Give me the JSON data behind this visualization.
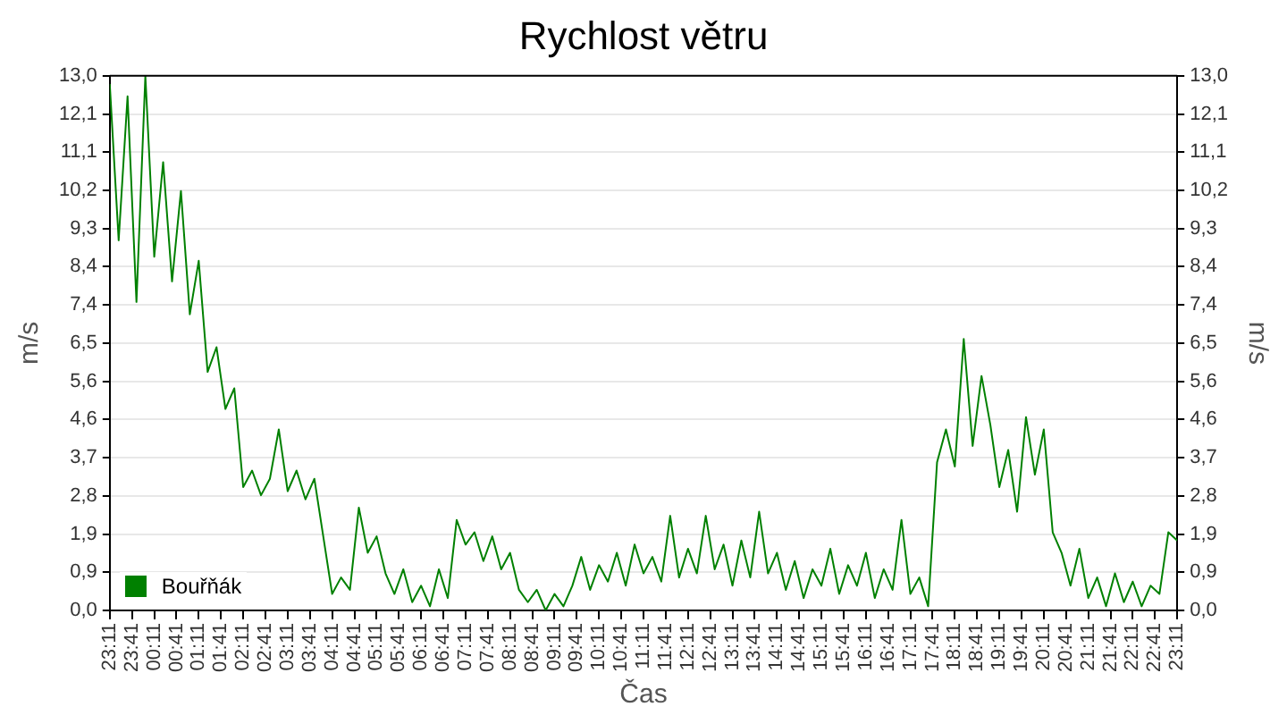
{
  "chart_data": {
    "type": "line",
    "title": "Rychlost větru",
    "xlabel": "Čas",
    "ylabel": "m/s",
    "y2label": "m/s",
    "x": [
      "--01-01T23:11",
      "--01-01T23:23",
      "--01-01T23:35",
      "--01-01T23:47",
      "--01-01T23:59",
      "--01-02T00:11",
      "--01-02T00:23",
      "--01-02T00:35",
      "--01-02T00:47",
      "--01-02T00:59",
      "--01-02T01:11",
      "--01-02T01:23",
      "--01-02T01:35",
      "--01-02T01:47",
      "--01-02T01:59",
      "--01-02T02:11",
      "--01-02T02:23",
      "--01-02T02:35",
      "--01-02T02:47",
      "--01-02T02:59",
      "--01-02T03:11",
      "--01-02T03:23",
      "--01-02T03:35",
      "--01-02T03:47",
      "--01-02T03:59",
      "--01-02T04:11",
      "--01-02T04:23",
      "--01-02T04:35",
      "--01-02T04:47",
      "--01-02T04:59",
      "--01-02T05:11",
      "--01-02T05:23",
      "--01-02T05:35",
      "--01-02T05:47",
      "--01-02T05:59",
      "--01-02T06:11",
      "--01-02T06:23",
      "--01-02T06:35",
      "--01-02T06:47",
      "--01-02T06:59",
      "--01-02T07:11",
      "--01-02T07:23",
      "--01-02T07:35",
      "--01-02T07:47",
      "--01-02T07:59",
      "--01-02T08:11",
      "--01-02T08:23",
      "--01-02T08:35",
      "--01-02T08:47",
      "--01-02T08:59",
      "--01-02T09:11",
      "--01-02T09:23",
      "--01-02T09:35",
      "--01-02T09:47",
      "--01-02T09:59",
      "--01-02T10:11",
      "--01-02T10:23",
      "--01-02T10:35",
      "--01-02T10:47",
      "--01-02T10:59",
      "--01-02T11:11",
      "--01-02T11:23",
      "--01-02T11:35",
      "--01-02T11:47",
      "--01-02T11:59",
      "--01-02T12:11",
      "--01-02T12:23",
      "--01-02T12:35",
      "--01-02T12:47",
      "--01-02T12:59",
      "--01-02T13:11",
      "--01-02T13:23",
      "--01-02T13:35",
      "--01-02T13:47",
      "--01-02T13:59",
      "--01-02T14:11",
      "--01-02T14:23",
      "--01-02T14:35",
      "--01-02T14:47",
      "--01-02T14:59",
      "--01-02T15:11",
      "--01-02T15:23",
      "--01-02T15:35",
      "--01-02T15:47",
      "--01-02T15:59",
      "--01-02T16:11",
      "--01-02T16:23",
      "--01-02T16:35",
      "--01-02T16:47",
      "--01-02T16:59",
      "--01-02T17:11",
      "--01-02T17:23",
      "--01-02T17:35",
      "--01-02T17:47",
      "--01-02T17:59",
      "--01-02T18:11",
      "--01-02T18:23",
      "--01-02T18:35",
      "--01-02T18:47",
      "--01-02T18:59",
      "--01-02T19:11",
      "--01-02T19:23",
      "--01-02T19:35",
      "--01-02T19:47",
      "--01-02T19:59",
      "--01-02T20:11",
      "--01-02T20:23",
      "--01-02T20:35",
      "--01-02T20:47",
      "--01-02T20:59",
      "--01-02T21:11",
      "--01-02T21:23",
      "--01-02T21:35",
      "--01-02T21:47",
      "--01-02T21:59",
      "--01-02T22:11",
      "--01-02T22:23",
      "--01-02T22:35",
      "--01-02T22:47",
      "--01-02T22:59",
      "--01-02T23:11"
    ],
    "series": [
      {
        "name": "Bouřňák",
        "color": "#008000",
        "values": [
          12.8,
          9.0,
          12.5,
          7.5,
          13.0,
          8.6,
          10.9,
          8.0,
          10.2,
          7.2,
          8.5,
          5.8,
          6.4,
          4.9,
          5.4,
          3.0,
          3.4,
          2.8,
          3.2,
          4.4,
          2.9,
          3.4,
          2.7,
          3.2,
          1.8,
          0.4,
          0.8,
          0.5,
          2.5,
          1.4,
          1.8,
          0.9,
          0.4,
          1.0,
          0.2,
          0.6,
          0.1,
          1.0,
          0.3,
          2.2,
          1.6,
          1.9,
          1.2,
          1.8,
          1.0,
          1.4,
          0.5,
          0.2,
          0.5,
          0.0,
          0.4,
          0.1,
          0.6,
          1.3,
          0.5,
          1.1,
          0.7,
          1.4,
          0.6,
          1.6,
          0.9,
          1.3,
          0.7,
          2.3,
          0.8,
          1.5,
          0.9,
          2.3,
          1.0,
          1.6,
          0.6,
          1.7,
          0.8,
          2.4,
          0.9,
          1.4,
          0.5,
          1.2,
          0.3,
          1.0,
          0.6,
          1.5,
          0.4,
          1.1,
          0.6,
          1.4,
          0.3,
          1.0,
          0.5,
          2.2,
          0.4,
          0.8,
          0.1,
          3.6,
          4.4,
          3.5,
          6.6,
          4.0,
          5.7,
          4.5,
          3.0,
          3.9,
          2.4,
          4.7,
          3.3,
          4.4,
          1.9,
          1.4,
          0.6,
          1.5,
          0.3,
          0.8,
          0.1,
          0.9,
          0.2,
          0.7,
          0.1,
          0.6,
          0.4,
          1.9,
          1.7
        ]
      }
    ],
    "xlim": [
      "--01-01T23:11",
      "--01-02T23:11"
    ],
    "xticks": [
      {
        "value": "--01-01T23:11",
        "label": "23:11"
      },
      {
        "value": "--01-01T23:41",
        "label": "23:41"
      },
      {
        "value": "--01-02T00:11",
        "label": "00:11"
      },
      {
        "value": "--01-02T00:41",
        "label": "00:41"
      },
      {
        "value": "--01-02T01:11",
        "label": "01:11"
      },
      {
        "value": "--01-02T01:41",
        "label": "01:41"
      },
      {
        "value": "--01-02T02:11",
        "label": "02:11"
      },
      {
        "value": "--01-02T02:41",
        "label": "02:41"
      },
      {
        "value": "--01-02T03:11",
        "label": "03:11"
      },
      {
        "value": "--01-02T03:41",
        "label": "03:41"
      },
      {
        "value": "--01-02T04:11",
        "label": "04:11"
      },
      {
        "value": "--01-02T04:41",
        "label": "04:41"
      },
      {
        "value": "--01-02T05:11",
        "label": "05:11"
      },
      {
        "value": "--01-02T05:41",
        "label": "05:41"
      },
      {
        "value": "--01-02T06:11",
        "label": "06:11"
      },
      {
        "value": "--01-02T06:41",
        "label": "06:41"
      },
      {
        "value": "--01-02T07:11",
        "label": "07:11"
      },
      {
        "value": "--01-02T07:41",
        "label": "07:41"
      },
      {
        "value": "--01-02T08:11",
        "label": "08:11"
      },
      {
        "value": "--01-02T08:41",
        "label": "08:41"
      },
      {
        "value": "--01-02T09:11",
        "label": "09:11"
      },
      {
        "value": "--01-02T09:41",
        "label": "09:41"
      },
      {
        "value": "--01-02T10:11",
        "label": "10:11"
      },
      {
        "value": "--01-02T10:41",
        "label": "10:41"
      },
      {
        "value": "--01-02T11:11",
        "label": "11:11"
      },
      {
        "value": "--01-02T11:41",
        "label": "11:41"
      },
      {
        "value": "--01-02T12:11",
        "label": "12:11"
      },
      {
        "value": "--01-02T12:41",
        "label": "12:41"
      },
      {
        "value": "--01-02T13:11",
        "label": "13:11"
      },
      {
        "value": "--01-02T13:41",
        "label": "13:41"
      },
      {
        "value": "--01-02T14:11",
        "label": "14:11"
      },
      {
        "value": "--01-02T14:41",
        "label": "14:41"
      },
      {
        "value": "--01-02T15:11",
        "label": "15:11"
      },
      {
        "value": "--01-02T15:41",
        "label": "15:41"
      },
      {
        "value": "--01-02T16:11",
        "label": "16:11"
      },
      {
        "value": "--01-02T16:41",
        "label": "16:41"
      },
      {
        "value": "--01-02T17:11",
        "label": "17:11"
      },
      {
        "value": "--01-02T17:41",
        "label": "17:41"
      },
      {
        "value": "--01-02T18:11",
        "label": "18:11"
      },
      {
        "value": "--01-02T18:41",
        "label": "18:41"
      },
      {
        "value": "--01-02T19:11",
        "label": "19:11"
      },
      {
        "value": "--01-02T19:41",
        "label": "19:41"
      },
      {
        "value": "--01-02T20:11",
        "label": "20:11"
      },
      {
        "value": "--01-02T20:41",
        "label": "20:41"
      },
      {
        "value": "--01-02T21:11",
        "label": "21:11"
      },
      {
        "value": "--01-02T21:41",
        "label": "21:41"
      },
      {
        "value": "--01-02T22:11",
        "label": "22:11"
      },
      {
        "value": "--01-02T22:41",
        "label": "22:41"
      },
      {
        "value": "--01-02T23:11",
        "label": "23:11"
      }
    ],
    "ylim": [
      0,
      13
    ],
    "yticks": [
      {
        "value": 0,
        "label": "0,0"
      },
      {
        "value": 0.929,
        "label": "0,9"
      },
      {
        "value": 1.857,
        "label": "1,9"
      },
      {
        "value": 2.786,
        "label": "2,8"
      },
      {
        "value": 3.714,
        "label": "3,7"
      },
      {
        "value": 4.643,
        "label": "4,6"
      },
      {
        "value": 5.571,
        "label": "5,6"
      },
      {
        "value": 6.5,
        "label": "6,5"
      },
      {
        "value": 7.429,
        "label": "7,4"
      },
      {
        "value": 8.357,
        "label": "8,4"
      },
      {
        "value": 9.286,
        "label": "9,3"
      },
      {
        "value": 10.214,
        "label": "10,2"
      },
      {
        "value": 11.143,
        "label": "11,1"
      },
      {
        "value": 12.071,
        "label": "12,1"
      },
      {
        "value": 13,
        "label": "13,0"
      }
    ],
    "y2lim": [
      0,
      13
    ],
    "y2ticks": [
      {
        "value": 0,
        "label": "0,0"
      },
      {
        "value": 0.929,
        "label": "0,9"
      },
      {
        "value": 1.857,
        "label": "1,9"
      },
      {
        "value": 2.786,
        "label": "2,8"
      },
      {
        "value": 3.714,
        "label": "3,7"
      },
      {
        "value": 4.643,
        "label": "4,6"
      },
      {
        "value": 5.571,
        "label": "5,6"
      },
      {
        "value": 6.5,
        "label": "6,5"
      },
      {
        "value": 7.429,
        "label": "7,4"
      },
      {
        "value": 8.357,
        "label": "8,4"
      },
      {
        "value": 9.286,
        "label": "9,3"
      },
      {
        "value": 10.214,
        "label": "10,2"
      },
      {
        "value": 11.143,
        "label": "11,1"
      },
      {
        "value": 12.071,
        "label": "12,1"
      },
      {
        "value": 13,
        "label": "13,0"
      }
    ],
    "grid": "y",
    "legend": "bottom left"
  }
}
